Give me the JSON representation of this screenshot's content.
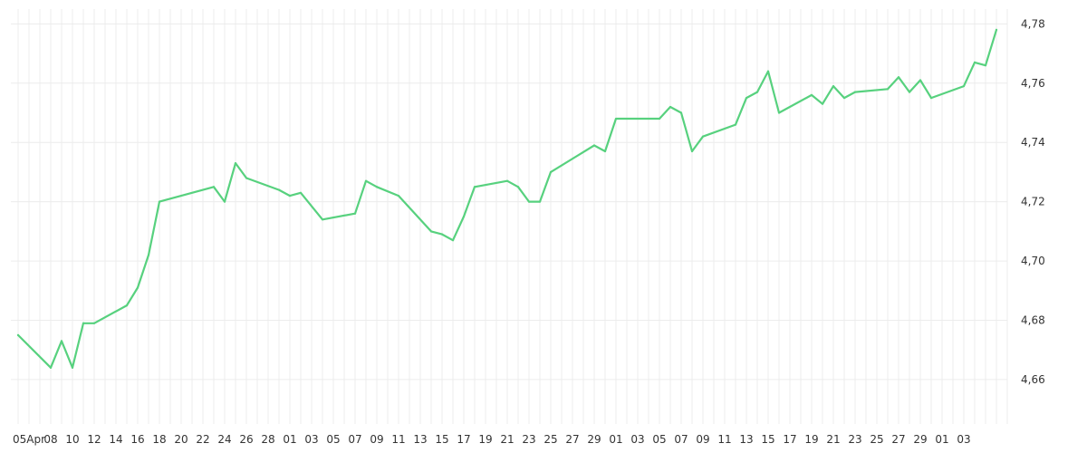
{
  "chart_data": {
    "type": "line",
    "title": "",
    "xlabel": "",
    "ylabel": "",
    "ylim": [
      4.645,
      4.785
    ],
    "grid": true,
    "y_ticks": [
      "4,66",
      "4,68",
      "4,70",
      "4,72",
      "4,74",
      "4,76",
      "4,78"
    ],
    "x_tick_labels": [
      "05Apr",
      "08",
      "10",
      "12",
      "14",
      "16",
      "18",
      "20",
      "22",
      "24",
      "26",
      "28",
      "01",
      "03",
      "05",
      "07",
      "09",
      "11",
      "13",
      "15",
      "17",
      "19",
      "21",
      "23",
      "25",
      "27",
      "29",
      "01",
      "03",
      "05",
      "07",
      "09",
      "11",
      "13",
      "15",
      "17",
      "19",
      "21",
      "23",
      "25",
      "27",
      "29",
      "01",
      "03"
    ],
    "x": [
      "2024-04-05",
      "2024-04-08",
      "2024-04-09",
      "2024-04-10",
      "2024-04-11",
      "2024-04-12",
      "2024-04-15",
      "2024-04-16",
      "2024-04-17",
      "2024-04-18",
      "2024-04-23",
      "2024-04-24",
      "2024-04-25",
      "2024-04-26",
      "2024-04-29",
      "2024-04-30",
      "2024-05-01",
      "2024-05-03",
      "2024-05-06",
      "2024-05-07",
      "2024-05-08",
      "2024-05-10",
      "2024-05-13",
      "2024-05-14",
      "2024-05-15",
      "2024-05-16",
      "2024-05-17",
      "2024-05-20",
      "2024-05-21",
      "2024-05-22",
      "2024-05-23",
      "2024-05-24",
      "2024-05-28",
      "2024-05-29",
      "2024-05-30",
      "2024-06-03",
      "2024-06-04",
      "2024-06-05",
      "2024-06-06",
      "2024-06-07",
      "2024-06-10",
      "2024-06-11",
      "2024-06-12",
      "2024-06-13",
      "2024-06-14",
      "2024-06-17",
      "2024-06-18",
      "2024-06-19",
      "2024-06-20",
      "2024-06-21",
      "2024-06-24",
      "2024-06-25",
      "2024-06-26",
      "2024-06-27",
      "2024-06-28",
      "2024-07-01",
      "2024-07-02",
      "2024-07-03",
      "2024-07-04"
    ],
    "series": [
      {
        "color": "#57d17e",
        "values": [
          4.675,
          4.664,
          4.673,
          4.664,
          4.679,
          4.679,
          4.685,
          4.691,
          4.702,
          4.72,
          4.725,
          4.72,
          4.733,
          4.728,
          4.724,
          4.722,
          4.723,
          4.714,
          4.716,
          4.727,
          4.725,
          4.722,
          4.71,
          4.709,
          4.707,
          4.715,
          4.725,
          4.727,
          4.725,
          4.72,
          4.72,
          4.73,
          4.739,
          4.737,
          4.748,
          4.748,
          4.752,
          4.75,
          4.737,
          4.742,
          4.746,
          4.755,
          4.757,
          4.764,
          4.75,
          4.756,
          4.753,
          4.759,
          4.755,
          4.757,
          4.758,
          4.762,
          4.757,
          4.761,
          4.755,
          4.759,
          4.767,
          4.766,
          4.778
        ]
      }
    ]
  }
}
